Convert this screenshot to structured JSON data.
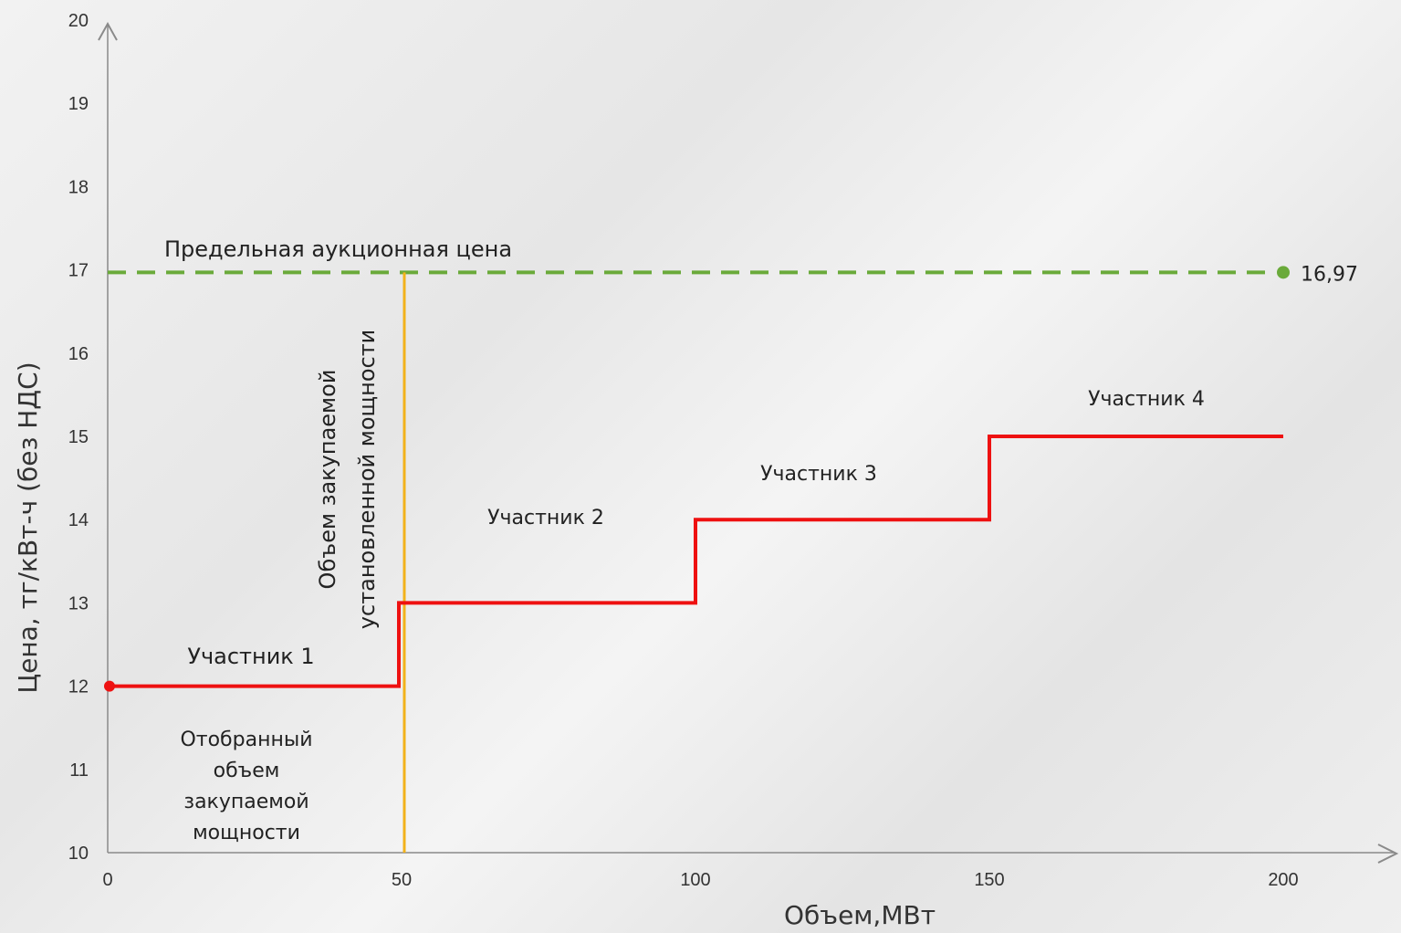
{
  "chart_data": {
    "type": "line",
    "title": "",
    "xlabel": "Объем,МВт",
    "ylabel": "Цена, тг/кВт-ч (без НДС)",
    "xlim": [
      0,
      200
    ],
    "ylim": [
      10,
      20
    ],
    "x_ticks": [
      "0",
      "50",
      "100",
      "150",
      "200"
    ],
    "y_ticks": [
      "10",
      "11",
      "12",
      "13",
      "14",
      "15",
      "16",
      "17",
      "18",
      "19",
      "20"
    ],
    "series": [
      {
        "color": "#ee1111",
        "step_points": [
          [
            0,
            12
          ],
          [
            50,
            12
          ],
          [
            50,
            13
          ],
          [
            100,
            13
          ],
          [
            100,
            14
          ],
          [
            150,
            14
          ],
          [
            150,
            15
          ],
          [
            200,
            15
          ]
        ]
      }
    ],
    "reference_lines": {
      "price_cap": {
        "y": 16.97,
        "label": "Предельная аукционная цена",
        "value_label": "16,97",
        "color": "#6aaa3a"
      },
      "volume_line": {
        "x": 50,
        "label_line1": "Объем закупаемой",
        "label_line2": "установленной мощности",
        "color": "#f2b21b"
      }
    },
    "annotations": [
      {
        "id": "participant-1",
        "text": "Участник 1"
      },
      {
        "id": "participant-2",
        "text": "Участник 2"
      },
      {
        "id": "participant-3",
        "text": "Участник 3"
      },
      {
        "id": "participant-4",
        "text": "Участник 4"
      }
    ],
    "selected_volume_label": [
      "Отобранный",
      "объем",
      "закупаемой",
      "мощности"
    ],
    "grid": false
  }
}
